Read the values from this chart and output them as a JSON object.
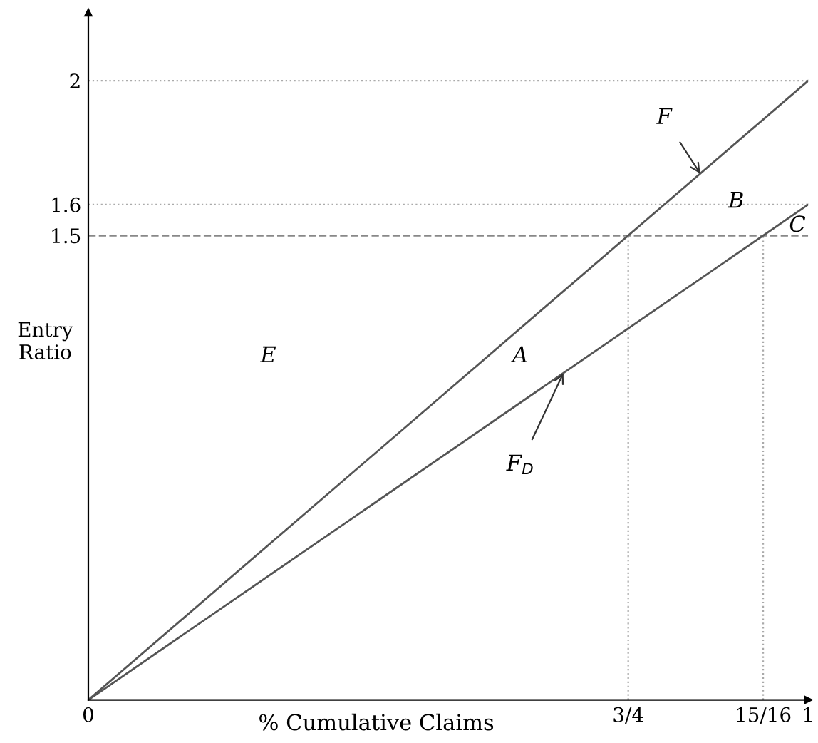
{
  "chart_data": {
    "type": "line",
    "xlabel": "% Cumulative Claims",
    "ylabel": "Entry\nRatio",
    "x": [
      0,
      1
    ],
    "series": [
      {
        "name": "F",
        "color": "#555555",
        "values": [
          0,
          2
        ]
      },
      {
        "name": "F$_{D}$",
        "color": "#555555",
        "values": [
          0,
          1.6
        ]
      }
    ],
    "xlim": [
      0,
      1
    ],
    "ylim": [
      0,
      2.22
    ],
    "xticks": [
      0,
      {
        "value": 0.75,
        "label": "3/4"
      },
      {
        "value": 0.9375,
        "label": "15/16"
      },
      1
    ],
    "yticks": [
      1.5,
      1.6,
      2
    ],
    "ref_lines": [
      {
        "axis": "y",
        "value": 2,
        "label": null,
        "color": "#aaaaaa",
        "line_style": "dotted"
      },
      {
        "axis": "y",
        "value": 1.6,
        "label": null,
        "color": "#aaaaaa",
        "line_style": "dotted"
      },
      {
        "axis": "y",
        "value": 1.5,
        "label": null,
        "color": "#888888",
        "line_style": "dashed"
      },
      {
        "axis": "x",
        "value": 0.75,
        "label": null,
        "color": "#aaaaaa",
        "line_style": "dotted"
      },
      {
        "axis": "x",
        "value": 0.9375,
        "label": null,
        "color": "#aaaaaa",
        "line_style": "dotted"
      }
    ],
    "annotations": [
      "E",
      "A",
      "B",
      "C"
    ],
    "grid": false,
    "legend": false,
    "marker": "none",
    "line_style": "solid"
  }
}
